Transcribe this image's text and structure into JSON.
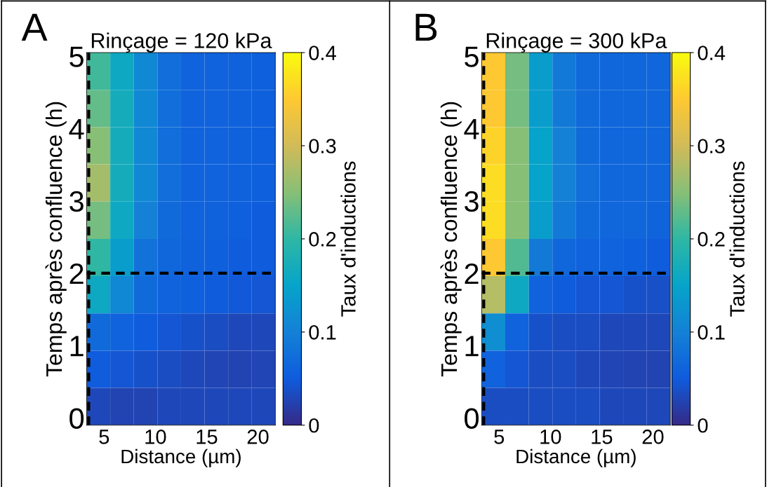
{
  "chart_data": [
    {
      "type": "heatmap",
      "title": "Rinçage = 120 kPa",
      "xlabel": "Distance (µm)",
      "ylabel": "Temps après confluence (h)",
      "clabel": "Taux d'inductions",
      "annotations": [
        "A"
      ],
      "xlim": [
        3.3,
        21.7
      ],
      "ylim": [
        -0.1,
        5.05
      ],
      "xticks": [
        5,
        10,
        15,
        20
      ],
      "yticks": [
        0,
        1,
        2,
        3,
        4,
        5
      ],
      "clim": [
        0,
        0.4
      ],
      "cticks": [
        0,
        0.1,
        0.2,
        0.3,
        0.4
      ],
      "cells": [
        [
          0.21,
          0.16,
          0.11,
          0.075,
          0.06,
          0.06,
          0.058,
          0.055
        ],
        [
          0.23,
          0.17,
          0.11,
          0.075,
          0.06,
          0.06,
          0.058,
          0.055
        ],
        [
          0.25,
          0.17,
          0.11,
          0.075,
          0.06,
          0.06,
          0.058,
          0.055
        ],
        [
          0.27,
          0.17,
          0.11,
          0.075,
          0.06,
          0.06,
          0.058,
          0.055
        ],
        [
          0.24,
          0.16,
          0.1,
          0.07,
          0.06,
          0.058,
          0.055,
          0.052
        ],
        [
          0.2,
          0.14,
          0.08,
          0.065,
          0.058,
          0.055,
          0.052,
          0.05
        ],
        [
          0.16,
          0.11,
          0.07,
          0.06,
          0.055,
          0.05,
          0.048,
          0.045
        ],
        [
          0.07,
          0.06,
          0.05,
          0.045,
          0.04,
          0.035,
          0.03,
          0.03
        ],
        [
          0.05,
          0.045,
          0.04,
          0.035,
          0.03,
          0.028,
          0.025,
          0.028
        ],
        [
          0.03,
          0.025,
          0.025,
          0.03,
          0.03,
          0.03,
          0.03,
          0.03
        ]
      ],
      "ref_lines": [
        {
          "axis": "y",
          "value": 2,
          "color": "#000000",
          "line_style": "dashed"
        },
        {
          "axis": "x",
          "value": 3.5,
          "color": "#000000",
          "line_style": "dashed"
        }
      ]
    },
    {
      "type": "heatmap",
      "title": "Rinçage = 300 kPa",
      "xlabel": "Distance (µm)",
      "ylabel": "Temps après confluence (h)",
      "clabel": "Taux d'inductions",
      "annotations": [
        "B"
      ],
      "xlim": [
        3.3,
        21.7
      ],
      "ylim": [
        -0.1,
        5.05
      ],
      "xticks": [
        5,
        10,
        15,
        20
      ],
      "yticks": [
        0,
        1,
        2,
        3,
        4,
        5
      ],
      "clim": [
        0,
        0.4
      ],
      "cticks": [
        0,
        0.1,
        0.2,
        0.3,
        0.4
      ],
      "cells": [
        [
          0.35,
          0.24,
          0.14,
          0.09,
          0.07,
          0.065,
          0.065,
          0.065
        ],
        [
          0.35,
          0.24,
          0.14,
          0.09,
          0.07,
          0.065,
          0.065,
          0.065
        ],
        [
          0.36,
          0.25,
          0.15,
          0.1,
          0.07,
          0.065,
          0.065,
          0.065
        ],
        [
          0.37,
          0.25,
          0.15,
          0.1,
          0.075,
          0.065,
          0.065,
          0.065
        ],
        [
          0.37,
          0.25,
          0.14,
          0.09,
          0.07,
          0.065,
          0.065,
          0.062
        ],
        [
          0.35,
          0.22,
          0.09,
          0.065,
          0.06,
          0.06,
          0.055,
          0.052
        ],
        [
          0.28,
          0.16,
          0.06,
          0.05,
          0.045,
          0.045,
          0.04,
          0.038
        ],
        [
          0.12,
          0.06,
          0.04,
          0.035,
          0.035,
          0.03,
          0.03,
          0.03
        ],
        [
          0.06,
          0.045,
          0.035,
          0.035,
          0.03,
          0.028,
          0.025,
          0.025
        ],
        [
          0.035,
          0.035,
          0.035,
          0.035,
          0.035,
          0.03,
          0.03,
          0.03
        ]
      ],
      "ref_lines": [
        {
          "axis": "y",
          "value": 2,
          "color": "#000000",
          "line_style": "dashed"
        },
        {
          "axis": "x",
          "value": 3.5,
          "color": "#000000",
          "line_style": "dashed"
        }
      ]
    }
  ]
}
